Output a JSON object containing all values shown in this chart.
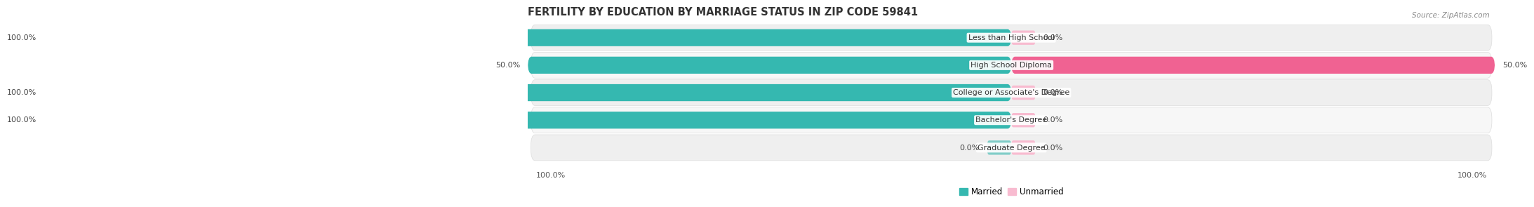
{
  "title": "FERTILITY BY EDUCATION BY MARRIAGE STATUS IN ZIP CODE 59841",
  "source": "Source: ZipAtlas.com",
  "categories": [
    "Less than High School",
    "High School Diploma",
    "College or Associate's Degree",
    "Bachelor's Degree",
    "Graduate Degree"
  ],
  "married": [
    100.0,
    50.0,
    100.0,
    100.0,
    0.0
  ],
  "unmarried": [
    0.0,
    50.0,
    0.0,
    0.0,
    0.0
  ],
  "married_color": "#35b8b0",
  "unmarried_color": "#f06292",
  "married_color_light": "#80cdc8",
  "unmarried_color_light": "#f8bbd0",
  "row_bg_color": "#efefef",
  "row_bg_alt": "#f7f7f7",
  "bar_height": 0.62,
  "title_fontsize": 10.5,
  "label_fontsize": 8.0,
  "value_fontsize": 8.0,
  "legend_fontsize": 8.5,
  "source_fontsize": 7.5
}
